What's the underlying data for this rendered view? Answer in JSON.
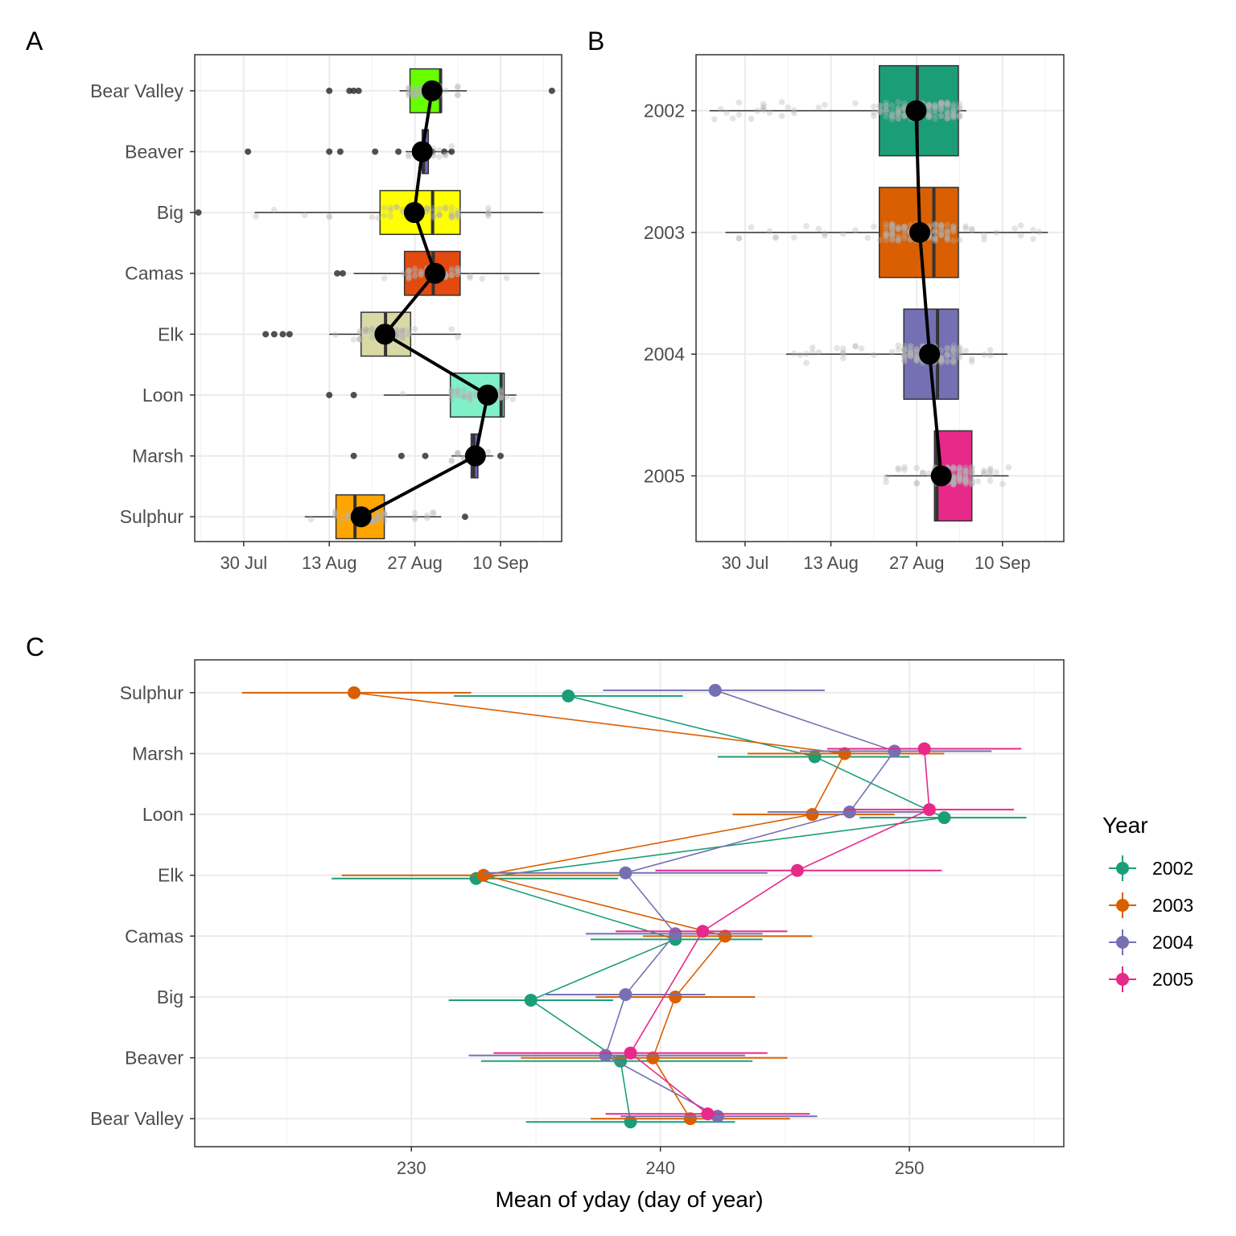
{
  "chart_data": [
    {
      "panel": "A",
      "type": "box",
      "orientation": "horizontal",
      "x_axis": {
        "unit": "day of year",
        "range": [
          203,
          263
        ],
        "ticks": [
          {
            "value": 211,
            "label": "30 Jul"
          },
          {
            "value": 225,
            "label": "13 Aug"
          },
          {
            "value": 239,
            "label": "27 Aug"
          },
          {
            "value": 253,
            "label": "10 Sep"
          }
        ]
      },
      "categories": [
        "Bear Valley",
        "Beaver",
        "Big",
        "Camas",
        "Elk",
        "Loon",
        "Marsh",
        "Sulphur"
      ],
      "boxes": [
        {
          "site": "Bear Valley",
          "q1": 238.2,
          "median": 243.2,
          "q3": 243.3,
          "whisker_low": 236.5,
          "whisker_high": 247.5,
          "mean": 241.8,
          "color": "#66ff00",
          "outliers": [
            225.0,
            228.3,
            229.0,
            229.8,
            261.4
          ]
        },
        {
          "site": "Beaver",
          "q1": 240.2,
          "median": 240.4,
          "q3": 241.2,
          "whisker_low": 237.5,
          "whisker_high": 245.0,
          "mean": 240.2,
          "color": "#6e66c4",
          "outliers": [
            211.7,
            225.0,
            226.8,
            232.5,
            236.3,
            241.8,
            243.8,
            245.0
          ]
        },
        {
          "site": "Big",
          "q1": 233.3,
          "median": 241.9,
          "q3": 246.4,
          "whisker_low": 212.8,
          "whisker_high": 260.0,
          "mean": 238.9,
          "color": "#ffff00",
          "outliers": [
            203.6
          ]
        },
        {
          "site": "Camas",
          "q1": 237.3,
          "median": 242.0,
          "q3": 246.4,
          "whisker_low": 229.0,
          "whisker_high": 259.4,
          "mean": 242.3,
          "color": "#e34a0f",
          "outliers": [
            226.3,
            227.2
          ]
        },
        {
          "site": "Elk",
          "q1": 230.2,
          "median": 234.2,
          "q3": 238.3,
          "whisker_low": 225.0,
          "whisker_high": 246.5,
          "mean": 234.1,
          "color": "#d9d9a5",
          "outliers": [
            214.6,
            216.0,
            217.4,
            218.5
          ]
        },
        {
          "site": "Loon",
          "q1": 244.8,
          "median": 253.1,
          "q3": 253.6,
          "whisker_low": 233.9,
          "whisker_high": 255.6,
          "mean": 250.9,
          "color": "#80f0c8",
          "outliers": [
            225.0,
            229.0
          ]
        },
        {
          "site": "Marsh",
          "q1": 248.2,
          "median": 248.6,
          "q3": 249.3,
          "whisker_low": 245.0,
          "whisker_high": 251.8,
          "mean": 248.9,
          "color": "#6e66c4",
          "outliers": [
            229.0,
            236.8,
            240.7,
            253.0
          ]
        },
        {
          "site": "Sulphur",
          "q1": 226.1,
          "median": 229.2,
          "q3": 234.0,
          "whisker_low": 221.0,
          "whisker_high": 243.3,
          "mean": 230.2,
          "color": "#ffa500",
          "outliers": [
            247.2
          ]
        }
      ]
    },
    {
      "panel": "B",
      "type": "box",
      "orientation": "horizontal",
      "x_axis": {
        "unit": "day of year",
        "range": [
          203,
          263
        ],
        "ticks": [
          {
            "value": 211,
            "label": "30 Jul"
          },
          {
            "value": 225,
            "label": "13 Aug"
          },
          {
            "value": 239,
            "label": "27 Aug"
          },
          {
            "value": 253,
            "label": "10 Sep"
          }
        ]
      },
      "categories": [
        "2002",
        "2003",
        "2004",
        "2005"
      ],
      "boxes": [
        {
          "year": "2002",
          "q1": 232.9,
          "median": 239.1,
          "q3": 245.8,
          "whisker_low": 205.2,
          "whisker_high": 247.1,
          "mean": 238.9,
          "color": "#1b9e77"
        },
        {
          "year": "2003",
          "q1": 232.9,
          "median": 241.8,
          "q3": 245.8,
          "whisker_low": 207.8,
          "whisker_high": 260.4,
          "mean": 239.5,
          "color": "#d95f02"
        },
        {
          "year": "2004",
          "q1": 236.9,
          "median": 242.4,
          "q3": 245.8,
          "whisker_low": 217.7,
          "whisker_high": 253.8,
          "mean": 241.1,
          "color": "#7570b3"
        },
        {
          "year": "2005",
          "q1": 241.9,
          "median": 242.3,
          "q3": 248.0,
          "whisker_low": 233.9,
          "whisker_high": 254.0,
          "mean": 243.0,
          "color": "#e7298a"
        }
      ]
    },
    {
      "panel": "C",
      "type": "line",
      "x_axis": {
        "label": "Mean of yday (day of year)",
        "range": [
          221.3,
          256.2
        ],
        "ticks": [
          230,
          240,
          250
        ]
      },
      "categories": [
        "Bear Valley",
        "Beaver",
        "Big",
        "Camas",
        "Elk",
        "Loon",
        "Marsh",
        "Sulphur"
      ],
      "legend": {
        "title": "Year",
        "position": "right"
      },
      "series": [
        {
          "name": "2002",
          "color": "#1b9e77",
          "points": [
            {
              "site": "Bear Valley",
              "mean": 238.8,
              "lo": 234.6,
              "hi": 243.0
            },
            {
              "site": "Beaver",
              "mean": 238.4,
              "lo": 232.8,
              "hi": 243.7
            },
            {
              "site": "Big",
              "mean": 234.8,
              "lo": 231.5,
              "hi": 238.1
            },
            {
              "site": "Camas",
              "mean": 240.6,
              "lo": 237.2,
              "hi": 244.1
            },
            {
              "site": "Elk",
              "mean": 232.6,
              "lo": 226.8,
              "hi": 238.3
            },
            {
              "site": "Loon",
              "mean": 251.4,
              "lo": 248.0,
              "hi": 254.7
            },
            {
              "site": "Marsh",
              "mean": 246.2,
              "lo": 242.3,
              "hi": 250.0
            },
            {
              "site": "Sulphur",
              "mean": 236.3,
              "lo": 231.7,
              "hi": 240.9
            }
          ]
        },
        {
          "name": "2003",
          "color": "#d95f02",
          "points": [
            {
              "site": "Bear Valley",
              "mean": 241.2,
              "lo": 237.2,
              "hi": 245.2
            },
            {
              "site": "Beaver",
              "mean": 239.7,
              "lo": 234.4,
              "hi": 245.1
            },
            {
              "site": "Big",
              "mean": 240.6,
              "lo": 237.4,
              "hi": 243.8
            },
            {
              "site": "Camas",
              "mean": 242.6,
              "lo": 239.3,
              "hi": 246.1
            },
            {
              "site": "Elk",
              "mean": 232.9,
              "lo": 227.2,
              "hi": 238.6
            },
            {
              "site": "Loon",
              "mean": 246.1,
              "lo": 242.9,
              "hi": 249.4
            },
            {
              "site": "Marsh",
              "mean": 247.4,
              "lo": 243.5,
              "hi": 251.4
            },
            {
              "site": "Sulphur",
              "mean": 227.7,
              "lo": 223.2,
              "hi": 232.4
            }
          ]
        },
        {
          "name": "2004",
          "color": "#7570b3",
          "points": [
            {
              "site": "Bear Valley",
              "mean": 242.3,
              "lo": 238.4,
              "hi": 246.3
            },
            {
              "site": "Beaver",
              "mean": 237.8,
              "lo": 232.3,
              "hi": 243.4
            },
            {
              "site": "Big",
              "mean": 238.6,
              "lo": 235.4,
              "hi": 241.8
            },
            {
              "site": "Camas",
              "mean": 240.6,
              "lo": 237.0,
              "hi": 244.1
            },
            {
              "site": "Elk",
              "mean": 238.6,
              "lo": 232.9,
              "hi": 244.3
            },
            {
              "site": "Loon",
              "mean": 247.6,
              "lo": 244.3,
              "hi": 251.0
            },
            {
              "site": "Marsh",
              "mean": 249.4,
              "lo": 245.6,
              "hi": 253.3
            },
            {
              "site": "Sulphur",
              "mean": 242.2,
              "lo": 237.7,
              "hi": 246.6
            }
          ]
        },
        {
          "name": "2005",
          "color": "#e7298a",
          "points": [
            {
              "site": "Bear Valley",
              "mean": 241.9,
              "lo": 237.8,
              "hi": 246.0
            },
            {
              "site": "Beaver",
              "mean": 238.8,
              "lo": 233.3,
              "hi": 244.3
            },
            {
              "site": "Camas",
              "mean": 241.7,
              "lo": 238.2,
              "hi": 245.1
            },
            {
              "site": "Elk",
              "mean": 245.5,
              "lo": 239.8,
              "hi": 251.3
            },
            {
              "site": "Loon",
              "mean": 250.8,
              "lo": 247.4,
              "hi": 254.2
            },
            {
              "site": "Marsh",
              "mean": 250.6,
              "lo": 246.7,
              "hi": 254.5
            }
          ]
        }
      ]
    }
  ]
}
